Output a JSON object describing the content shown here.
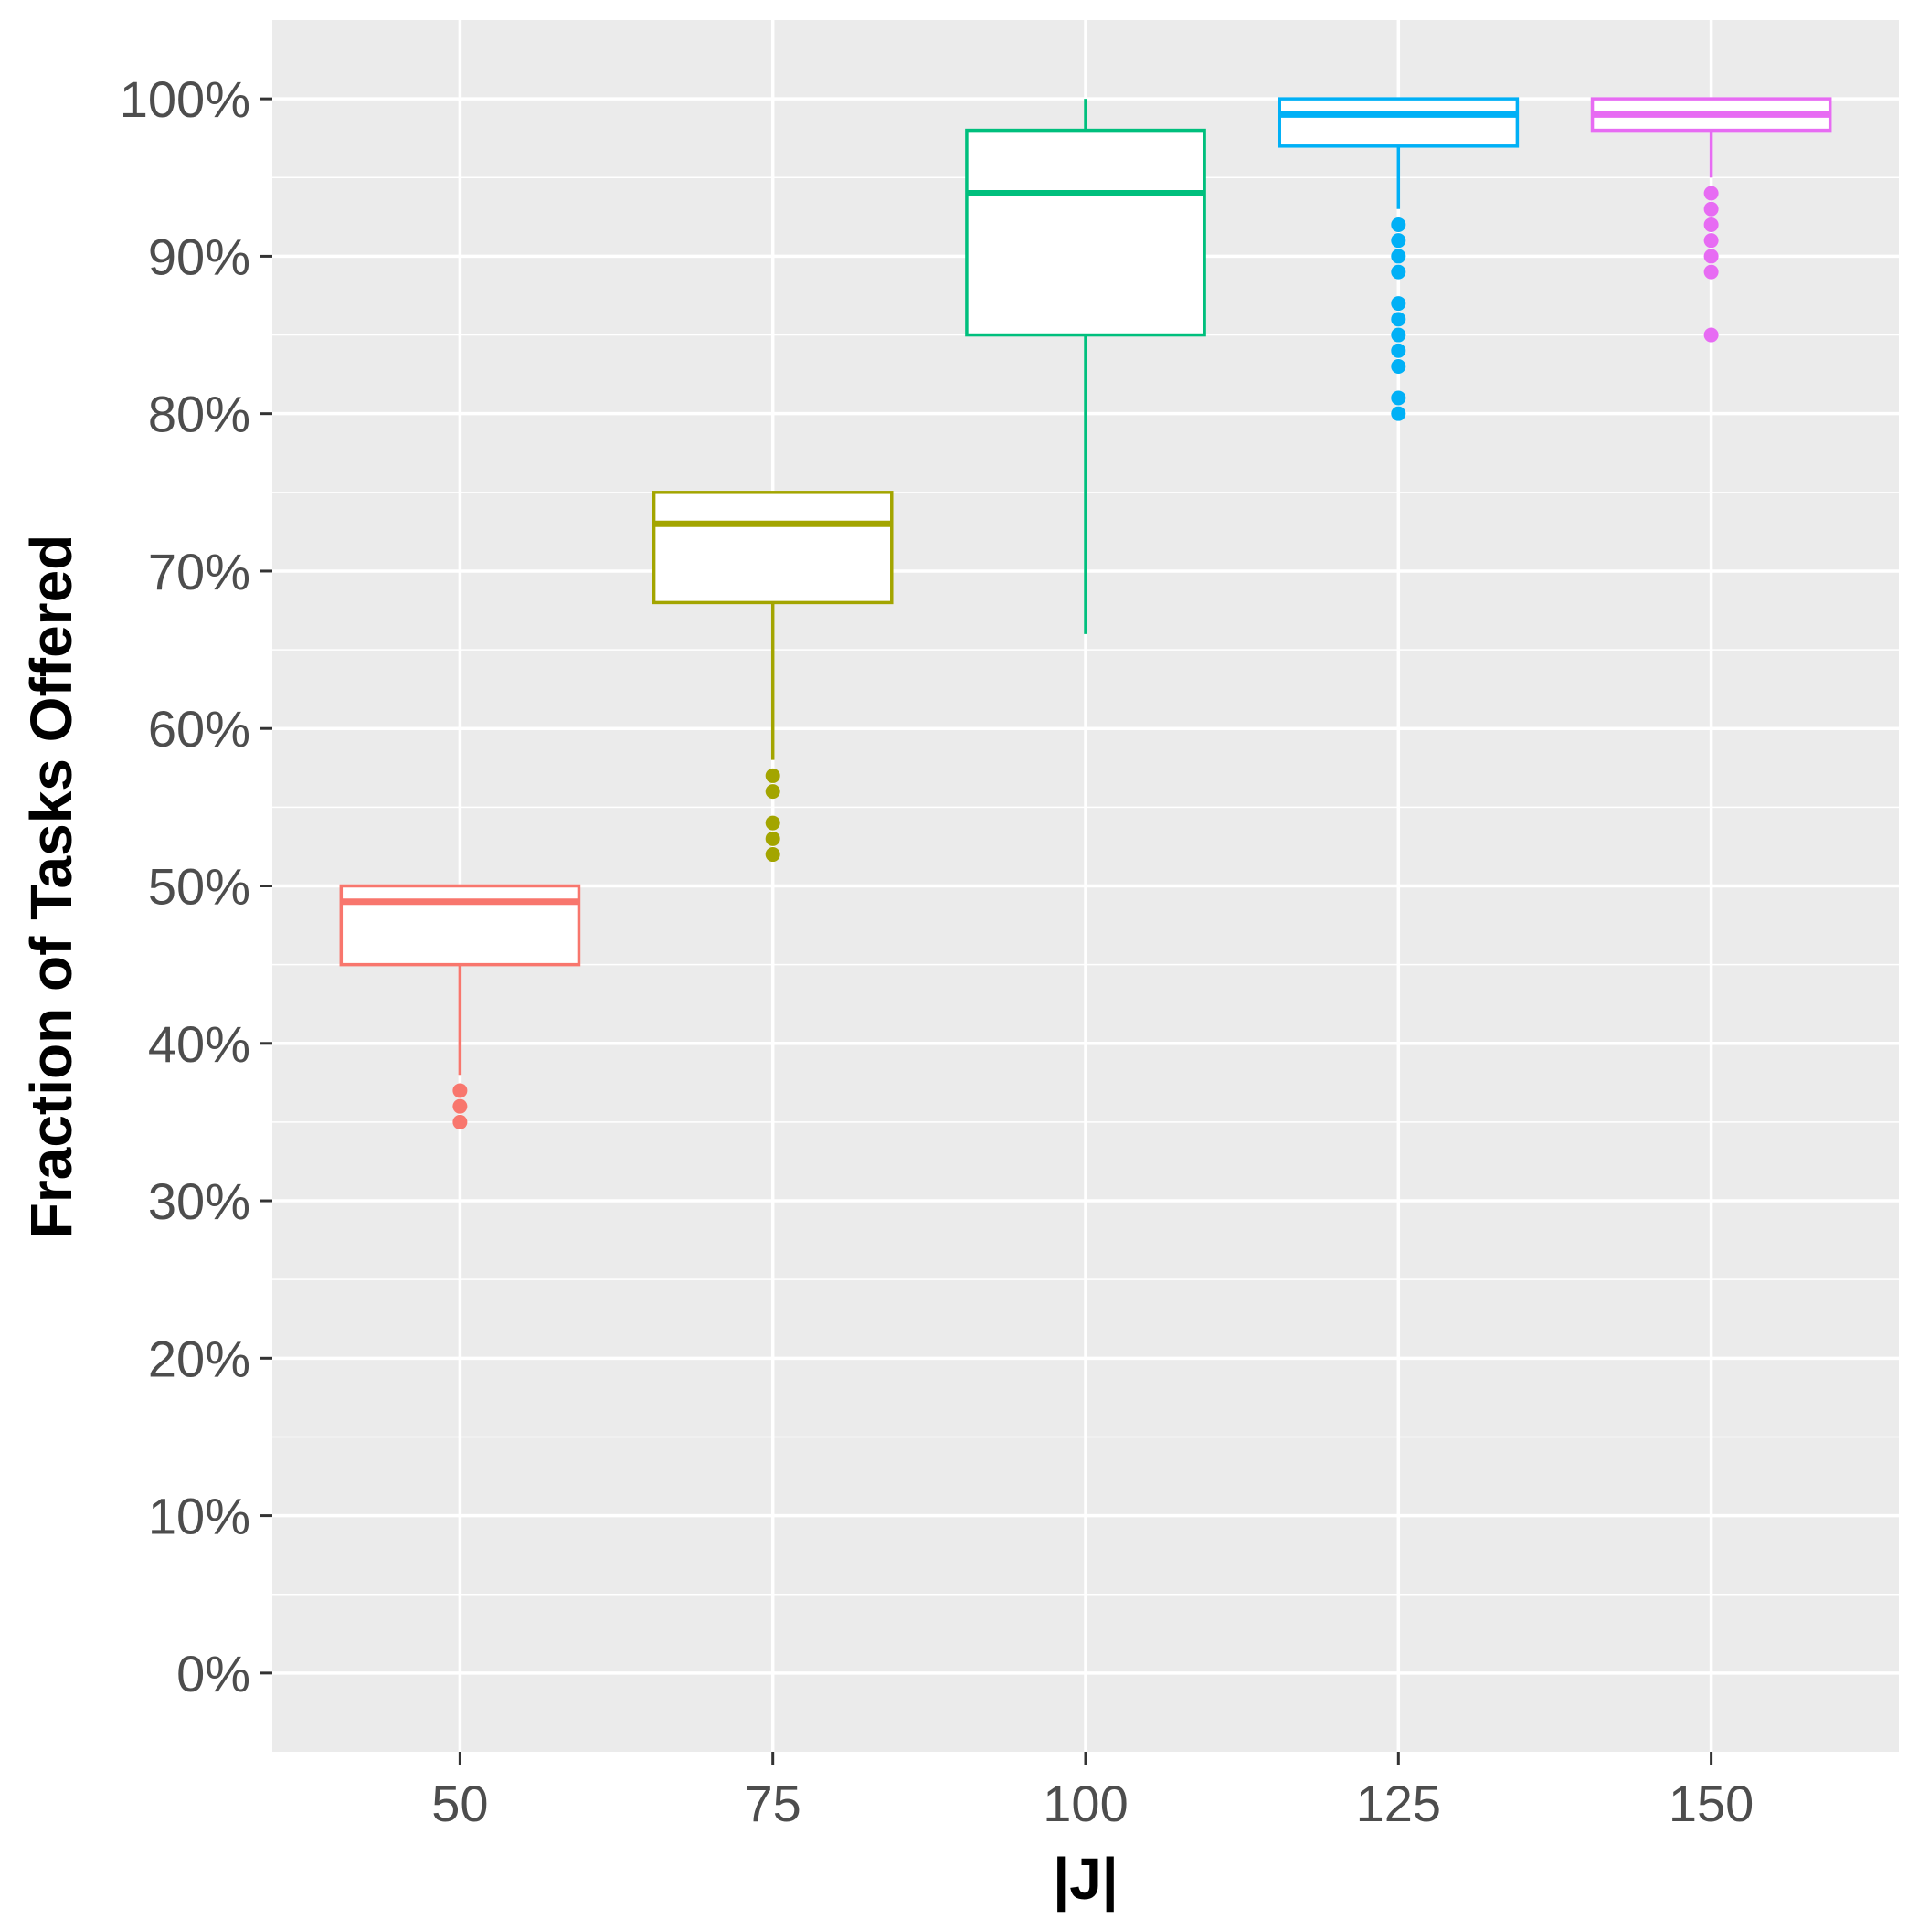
{
  "chart_data": {
    "type": "boxplot",
    "title": "",
    "xlabel": "|J|",
    "ylabel": "Fraction of Tasks Offered",
    "ylim": [
      -0.05,
      1.05
    ],
    "y_ticks": [
      0,
      0.1,
      0.2,
      0.3,
      0.4,
      0.5,
      0.6,
      0.7,
      0.8,
      0.9,
      1.0
    ],
    "y_tick_labels": [
      "0%",
      "10%",
      "20%",
      "30%",
      "40%",
      "50%",
      "60%",
      "70%",
      "80%",
      "90%",
      "100%"
    ],
    "x_range": [
      35,
      165
    ],
    "x_tick_labels": [
      "50",
      "75",
      "100",
      "125",
      "150"
    ],
    "box_width_units": 19,
    "background": "#ebebeb",
    "grid": true,
    "boxes": [
      {
        "x": 50,
        "whisker_low": 0.38,
        "q1": 0.45,
        "median": 0.49,
        "q3": 0.5,
        "whisker_high": 0.5,
        "outliers": [
          0.37,
          0.36,
          0.35
        ],
        "color": "#F8766D"
      },
      {
        "x": 75,
        "whisker_low": 0.58,
        "q1": 0.68,
        "median": 0.73,
        "q3": 0.75,
        "whisker_high": 0.75,
        "outliers": [
          0.57,
          0.56,
          0.54,
          0.53,
          0.52
        ],
        "color": "#A3A500"
      },
      {
        "x": 100,
        "whisker_low": 0.66,
        "q1": 0.85,
        "median": 0.94,
        "q3": 0.98,
        "whisker_high": 1.0,
        "outliers": [],
        "color": "#00BF7D"
      },
      {
        "x": 125,
        "whisker_low": 0.93,
        "q1": 0.97,
        "median": 0.99,
        "q3": 1.0,
        "whisker_high": 1.0,
        "outliers": [
          0.92,
          0.91,
          0.9,
          0.89,
          0.87,
          0.86,
          0.85,
          0.84,
          0.83,
          0.81,
          0.8
        ],
        "color": "#00B0F6"
      },
      {
        "x": 150,
        "whisker_low": 0.95,
        "q1": 0.98,
        "median": 0.99,
        "q3": 1.0,
        "whisker_high": 1.0,
        "outliers": [
          0.94,
          0.93,
          0.92,
          0.91,
          0.9,
          0.89,
          0.85
        ],
        "color": "#E76BF3"
      }
    ]
  }
}
